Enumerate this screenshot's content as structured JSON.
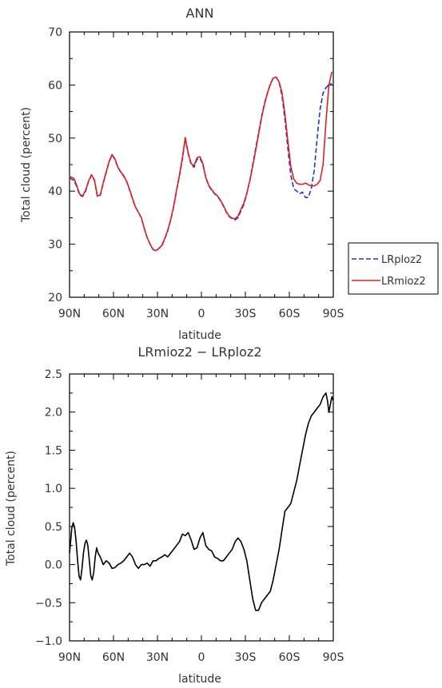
{
  "chart_data": [
    {
      "type": "line",
      "title": "ANN",
      "xlabel": "latitude",
      "ylabel": "Total cloud (percent)",
      "xlim": [
        90,
        -90
      ],
      "ylim": [
        20,
        70
      ],
      "xticks": [
        {
          "value": 90,
          "label": "90N"
        },
        {
          "value": 60,
          "label": "60N"
        },
        {
          "value": 30,
          "label": "30N"
        },
        {
          "value": 0,
          "label": "0"
        },
        {
          "value": -30,
          "label": "30S"
        },
        {
          "value": -60,
          "label": "60S"
        },
        {
          "value": -90,
          "label": "90S"
        }
      ],
      "yticks": [
        {
          "value": 20,
          "label": "20"
        },
        {
          "value": 30,
          "label": "30"
        },
        {
          "value": 40,
          "label": "40"
        },
        {
          "value": 50,
          "label": "50"
        },
        {
          "value": 60,
          "label": "60"
        },
        {
          "value": 70,
          "label": "70"
        }
      ],
      "legend": {
        "placement": "right"
      },
      "series": [
        {
          "name": "LRploz2",
          "color": "#2233cc",
          "dash": true,
          "x": [
            90,
            87,
            85,
            83,
            81,
            79,
            77,
            75,
            73,
            71,
            69,
            67,
            65,
            63,
            61,
            59,
            57,
            55,
            53,
            51,
            49,
            47,
            45,
            43,
            41,
            39,
            37,
            35,
            33,
            31,
            29,
            27,
            25,
            23,
            21,
            19,
            17,
            15,
            13,
            11,
            9,
            7,
            5,
            3,
            1,
            -1,
            -3,
            -5,
            -7,
            -9,
            -11,
            -13,
            -15,
            -17,
            -19,
            -21,
            -23,
            -25,
            -27,
            -29,
            -31,
            -33,
            -35,
            -37,
            -39,
            -41,
            -43,
            -45,
            -47,
            -49,
            -51,
            -53,
            -55,
            -57,
            -59,
            -61,
            -63,
            -65,
            -67,
            -69,
            -71,
            -73,
            -75,
            -77,
            -79,
            -81,
            -83,
            -85,
            -87,
            -89
          ],
          "y": [
            42.5,
            42.0,
            40.8,
            39.2,
            39.0,
            40.0,
            41.8,
            43.0,
            42.0,
            39.0,
            39.2,
            41.5,
            43.5,
            45.5,
            46.8,
            46.0,
            44.5,
            43.5,
            42.8,
            41.8,
            40.2,
            38.5,
            37.0,
            36.0,
            35.0,
            33.0,
            31.2,
            30.0,
            29.0,
            28.7,
            29.2,
            29.7,
            31.0,
            32.5,
            34.5,
            37.0,
            40.0,
            42.8,
            46.0,
            49.8,
            47.0,
            45.0,
            44.5,
            46.0,
            46.2,
            45.0,
            42.5,
            41.0,
            40.2,
            39.5,
            39.0,
            38.2,
            37.2,
            36.0,
            35.2,
            34.8,
            34.6,
            35.0,
            36.3,
            37.5,
            39.5,
            42.0,
            45.0,
            48.0,
            51.0,
            54.0,
            56.5,
            58.5,
            60.2,
            61.3,
            61.5,
            60.5,
            58.0,
            53.5,
            48.0,
            43.0,
            40.5,
            40.0,
            39.5,
            39.8,
            38.8,
            38.8,
            40.5,
            44.0,
            50.0,
            55.5,
            58.5,
            59.5,
            60.0,
            60.3
          ]
        },
        {
          "name": "LRmioz2",
          "color": "#dd2222",
          "dash": false,
          "x": [
            90,
            87,
            85,
            83,
            81,
            79,
            77,
            75,
            73,
            71,
            69,
            67,
            65,
            63,
            61,
            59,
            57,
            55,
            53,
            51,
            49,
            47,
            45,
            43,
            41,
            39,
            37,
            35,
            33,
            31,
            29,
            27,
            25,
            23,
            21,
            19,
            17,
            15,
            13,
            11,
            9,
            7,
            5,
            3,
            1,
            -1,
            -3,
            -5,
            -7,
            -9,
            -11,
            -13,
            -15,
            -17,
            -19,
            -21,
            -23,
            -25,
            -27,
            -29,
            -31,
            -33,
            -35,
            -37,
            -39,
            -41,
            -43,
            -45,
            -47,
            -49,
            -51,
            -53,
            -55,
            -57,
            -59,
            -61,
            -63,
            -65,
            -67,
            -69,
            -71,
            -73,
            -75,
            -77,
            -79,
            -81,
            -83,
            -85,
            -87,
            -89
          ],
          "y": [
            42.8,
            42.4,
            41.0,
            39.4,
            39.1,
            40.2,
            41.9,
            43.1,
            42.1,
            39.1,
            39.3,
            41.6,
            43.6,
            45.6,
            46.9,
            46.1,
            44.5,
            43.6,
            42.9,
            41.8,
            40.3,
            38.6,
            37.0,
            36.0,
            35.0,
            33.0,
            31.2,
            30.0,
            29.0,
            28.8,
            29.2,
            29.8,
            31.1,
            32.6,
            34.6,
            37.1,
            40.1,
            43.0,
            46.3,
            50.1,
            47.2,
            45.2,
            44.8,
            46.3,
            46.5,
            45.2,
            42.6,
            41.1,
            40.3,
            39.6,
            39.1,
            38.3,
            37.3,
            36.1,
            35.3,
            34.9,
            34.8,
            35.3,
            36.6,
            37.8,
            39.6,
            41.9,
            44.7,
            47.6,
            50.7,
            53.8,
            56.3,
            58.4,
            60.1,
            61.3,
            61.5,
            60.6,
            58.6,
            54.5,
            49.4,
            44.7,
            42.3,
            41.5,
            41.3,
            41.3,
            41.5,
            41.2,
            41.0,
            41.0,
            41.3,
            42.0,
            45.0,
            53.0,
            60.0,
            62.5
          ]
        }
      ]
    },
    {
      "type": "line",
      "title": "LRmioz2 − LRploz2",
      "xlabel": "latitude",
      "ylabel": "Total cloud (percent)",
      "xlim": [
        90,
        -90
      ],
      "ylim": [
        -1.0,
        2.5
      ],
      "xticks": [
        {
          "value": 90,
          "label": "90N"
        },
        {
          "value": 60,
          "label": "60N"
        },
        {
          "value": 30,
          "label": "30N"
        },
        {
          "value": 0,
          "label": "0"
        },
        {
          "value": -30,
          "label": "30S"
        },
        {
          "value": -60,
          "label": "60S"
        },
        {
          "value": -90,
          "label": "90S"
        }
      ],
      "yticks": [
        {
          "value": -1.0,
          "label": "−1.0"
        },
        {
          "value": -0.5,
          "label": "−0.5"
        },
        {
          "value": 0.0,
          "label": "0.0"
        },
        {
          "value": 0.5,
          "label": "0.5"
        },
        {
          "value": 1.0,
          "label": "1.0"
        },
        {
          "value": 1.5,
          "label": "1.5"
        },
        {
          "value": 2.0,
          "label": "2.0"
        },
        {
          "value": 2.5,
          "label": "2.5"
        }
      ],
      "series": [
        {
          "color": "#000000",
          "dash": false,
          "x": [
            90,
            89.5,
            88.5,
            87.5,
            86.5,
            85.5,
            84.5,
            83.5,
            82.5,
            81.5,
            80.5,
            79.5,
            78.5,
            77.5,
            76.5,
            75.5,
            74.5,
            73.5,
            72.5,
            71.5,
            70.5,
            69,
            67,
            65,
            63,
            61,
            59,
            57,
            55,
            53,
            51,
            49,
            47,
            45,
            43,
            41,
            39,
            37,
            35,
            33,
            31,
            29,
            27,
            25,
            23,
            21,
            19,
            17,
            15,
            13,
            11,
            9,
            7,
            5,
            3,
            1,
            -1,
            -3,
            -5,
            -7,
            -9,
            -11,
            -13,
            -15,
            -17,
            -19,
            -21,
            -23,
            -25,
            -27,
            -29,
            -31,
            -33,
            -35,
            -37,
            -39,
            -41,
            -43,
            -45,
            -47,
            -49,
            -51,
            -53,
            -55,
            -57,
            -59,
            -61,
            -63,
            -65,
            -67,
            -69,
            -71,
            -73,
            -75,
            -77,
            -79,
            -81,
            -83,
            -85,
            -86,
            -87,
            -88,
            -89,
            -90
          ],
          "y": [
            0.15,
            0.25,
            0.48,
            0.55,
            0.48,
            0.3,
            0.05,
            -0.15,
            -0.2,
            -0.05,
            0.15,
            0.28,
            0.32,
            0.25,
            0.05,
            -0.15,
            -0.2,
            -0.1,
            0.1,
            0.22,
            0.15,
            0.1,
            0.0,
            0.05,
            0.02,
            -0.05,
            -0.04,
            0.0,
            0.02,
            0.05,
            0.1,
            0.15,
            0.1,
            0.0,
            -0.05,
            0.0,
            0.0,
            0.02,
            -0.02,
            0.05,
            0.05,
            0.08,
            0.1,
            0.13,
            0.1,
            0.15,
            0.2,
            0.25,
            0.3,
            0.4,
            0.38,
            0.42,
            0.32,
            0.2,
            0.22,
            0.35,
            0.42,
            0.25,
            0.2,
            0.18,
            0.1,
            0.08,
            0.05,
            0.05,
            0.1,
            0.15,
            0.2,
            0.3,
            0.35,
            0.3,
            0.2,
            0.05,
            -0.2,
            -0.45,
            -0.6,
            -0.6,
            -0.5,
            -0.45,
            -0.4,
            -0.35,
            -0.2,
            0.0,
            0.2,
            0.45,
            0.7,
            0.75,
            0.8,
            0.95,
            1.1,
            1.3,
            1.5,
            1.7,
            1.85,
            1.95,
            2.0,
            2.05,
            2.1,
            2.2,
            2.25,
            2.15,
            2.0,
            2.1,
            2.2,
            2.15
          ]
        }
      ]
    }
  ]
}
